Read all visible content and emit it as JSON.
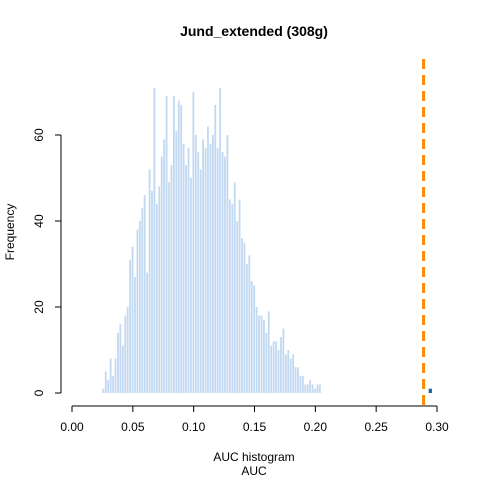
{
  "chart_data": {
    "type": "bar",
    "title": "Jund_extended (308g)",
    "xlabel": "AUC histogram",
    "xlabel2": "AUC",
    "ylabel": "Frequency",
    "xlim": [
      0.0,
      0.3
    ],
    "ylim": [
      0,
      72
    ],
    "xticks": [
      "0.00",
      "0.05",
      "0.10",
      "0.15",
      "0.20",
      "0.25",
      "0.30"
    ],
    "xtick_values": [
      0.0,
      0.05,
      0.1,
      0.15,
      0.2,
      0.25,
      0.3
    ],
    "yticks": [
      "0",
      "20",
      "40",
      "60"
    ],
    "ytick_values": [
      0,
      20,
      40,
      60
    ],
    "bin_start": 0.025,
    "bin_width": 0.002,
    "values": [
      1,
      5,
      3,
      8,
      4,
      8,
      14,
      16,
      11,
      18,
      20,
      31,
      34,
      27,
      38,
      40,
      43,
      46,
      28,
      52,
      47,
      71,
      44,
      48,
      55,
      59,
      69,
      49,
      53,
      69,
      61,
      68,
      67,
      58,
      53,
      57,
      50,
      70,
      60,
      56,
      52,
      59,
      57,
      62,
      58,
      60,
      67,
      57,
      71,
      56,
      55,
      60,
      45,
      44,
      49,
      40,
      45,
      36,
      35,
      30,
      32,
      26,
      25,
      20,
      18,
      18,
      17,
      14,
      19,
      11,
      12,
      12,
      10,
      13,
      15,
      9,
      10,
      8,
      9,
      6,
      6,
      4,
      4,
      2,
      2,
      3,
      2,
      1,
      2,
      2
    ],
    "bar_color": "#c3d9f2",
    "highlight_bar": {
      "x": 0.2945,
      "value": 1,
      "color": "#1f5fa8"
    },
    "reference_line": {
      "x": 0.289,
      "color": "#ff8c00",
      "style": "dashed"
    }
  }
}
